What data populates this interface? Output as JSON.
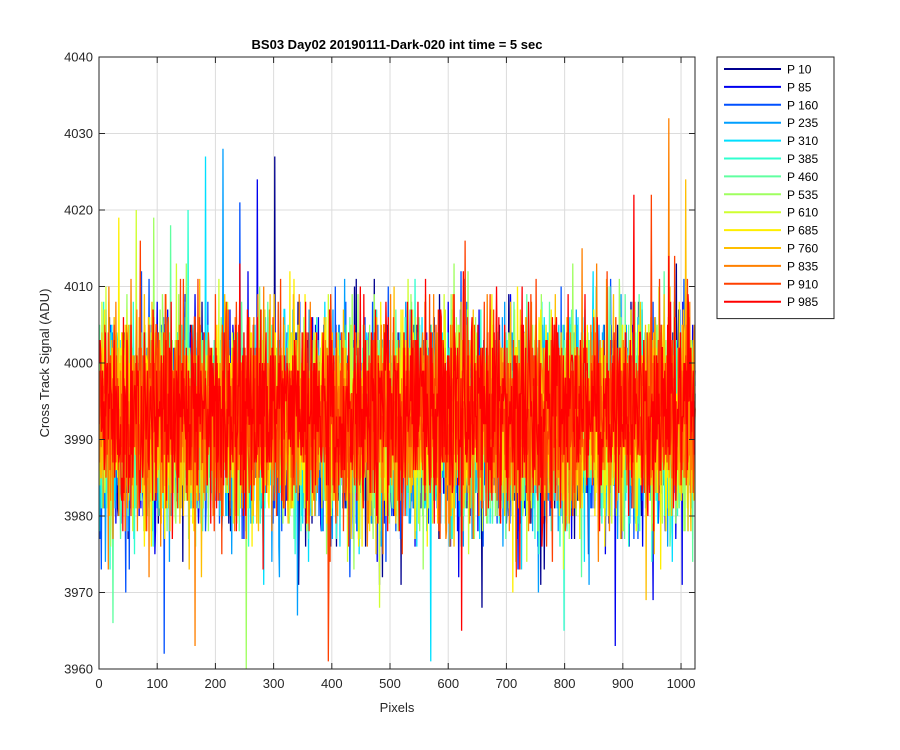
{
  "chart_data": {
    "type": "line",
    "title": "BS03 Day02 20190111-Dark-020 int time = 5 sec",
    "xlabel": "Pixels",
    "ylabel": "Cross Track Signal (ADU)",
    "xlim": [
      0,
      1024
    ],
    "ylim": [
      3960,
      4040
    ],
    "xticks": [
      0,
      100,
      200,
      300,
      400,
      500,
      600,
      700,
      800,
      900,
      1000
    ],
    "yticks": [
      3960,
      3970,
      3980,
      3990,
      4000,
      4010,
      4020,
      4030,
      4040
    ],
    "grid": true,
    "legend_position": "outside-top-right",
    "noise_center": 3993,
    "noise_sigma": 6.5,
    "series": [
      {
        "name": "P 10",
        "color": "#00008f",
        "mean": 3992,
        "max": 4027,
        "min": 3968
      },
      {
        "name": "P 85",
        "color": "#0000ef",
        "mean": 3992,
        "max": 4024,
        "min": 3963
      },
      {
        "name": "P 160",
        "color": "#0050ff",
        "mean": 3992,
        "max": 4021,
        "min": 3962
      },
      {
        "name": "P 235",
        "color": "#009fff",
        "mean": 3992,
        "max": 4028,
        "min": 3967
      },
      {
        "name": "P 310",
        "color": "#00dfff",
        "mean": 3992,
        "max": 4027,
        "min": 3961
      },
      {
        "name": "P 385",
        "color": "#30ffcf",
        "mean": 3992,
        "max": 4020,
        "min": 3965
      },
      {
        "name": "P 460",
        "color": "#60ffa0",
        "mean": 3993,
        "max": 4018,
        "min": 3966
      },
      {
        "name": "P 535",
        "color": "#9fff60",
        "mean": 3993,
        "max": 4019,
        "min": 3960
      },
      {
        "name": "P 610",
        "color": "#cfff30",
        "mean": 3993,
        "max": 4020,
        "min": 3968
      },
      {
        "name": "P 685",
        "color": "#ffef00",
        "mean": 3993,
        "max": 4019,
        "min": 3970
      },
      {
        "name": "P 760",
        "color": "#ffbf00",
        "mean": 3993,
        "max": 4024,
        "min": 3969
      },
      {
        "name": "P 835",
        "color": "#ff8000",
        "mean": 3993,
        "max": 4032,
        "min": 3963
      },
      {
        "name": "P 910",
        "color": "#ff4000",
        "mean": 3994,
        "max": 4022,
        "min": 3961
      },
      {
        "name": "P 985",
        "color": "#ff0000",
        "mean": 3994,
        "max": 4022,
        "min": 3965
      }
    ]
  }
}
